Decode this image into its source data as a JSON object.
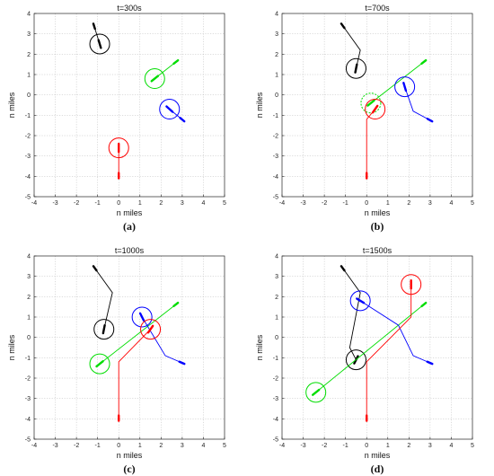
{
  "chart_data": [
    {
      "type": "line",
      "title": "t=300s",
      "caption": "(a)",
      "xlabel": "n miles",
      "ylabel": "n miles",
      "xlim": [
        -4,
        5
      ],
      "ylim": [
        -5,
        4
      ],
      "xticks": [
        -4,
        -3,
        -2,
        -1,
        0,
        1,
        2,
        3,
        4,
        5
      ],
      "yticks": [
        -5,
        -4,
        -3,
        -2,
        -1,
        0,
        1,
        2,
        3,
        4
      ],
      "grid": true,
      "series": [
        {
          "color": "#000000",
          "path": [
            [
              -1.2,
              3.5
            ],
            [
              -0.9,
              2.5
            ]
          ],
          "aircraft": [
            -0.9,
            2.5
          ],
          "heading": [
            0.3,
            -1.0
          ],
          "circle": true
        },
        {
          "color": "#00dd00",
          "path": [
            [
              2.8,
              1.7
            ],
            [
              1.7,
              0.8
            ]
          ],
          "aircraft": [
            1.7,
            0.8
          ],
          "heading": [
            -1.0,
            -0.8
          ],
          "circle": true
        },
        {
          "color": "#0000ff",
          "path": [
            [
              3.1,
              -1.3
            ],
            [
              2.4,
              -0.7
            ]
          ],
          "aircraft": [
            2.4,
            -0.7
          ],
          "heading": [
            -1.0,
            0.9
          ],
          "circle": true
        },
        {
          "color": "#ff0000",
          "path": [
            [
              0.0,
              -4.1
            ],
            [
              0.0,
              -2.6
            ]
          ],
          "aircraft": [
            0.0,
            -2.6
          ],
          "heading": [
            0.0,
            1.0
          ],
          "circle": true
        }
      ]
    },
    {
      "type": "line",
      "title": "t=700s",
      "caption": "(b)",
      "xlabel": "n miles",
      "ylabel": "n miles",
      "xlim": [
        -4,
        5
      ],
      "ylim": [
        -5,
        4
      ],
      "xticks": [
        -4,
        -3,
        -2,
        -1,
        0,
        1,
        2,
        3,
        4,
        5
      ],
      "yticks": [
        -5,
        -4,
        -3,
        -2,
        -1,
        0,
        1,
        2,
        3,
        4
      ],
      "grid": true,
      "series": [
        {
          "color": "#000000",
          "path": [
            [
              -1.2,
              3.5
            ],
            [
              -0.3,
              2.2
            ],
            [
              -0.5,
              1.3
            ]
          ],
          "aircraft": [
            -0.5,
            1.3
          ],
          "heading": [
            0.2,
            1.0
          ],
          "circle": true
        },
        {
          "color": "#00dd00",
          "path": [
            [
              2.8,
              1.7
            ],
            [
              0.2,
              -0.4
            ]
          ],
          "aircraft": [
            0.2,
            -0.4
          ],
          "heading": [
            -1.0,
            -0.8
          ],
          "circle": true,
          "dashed_circle": true
        },
        {
          "color": "#0000ff",
          "path": [
            [
              3.1,
              -1.3
            ],
            [
              2.2,
              -0.8
            ],
            [
              1.8,
              0.4
            ]
          ],
          "aircraft": [
            1.8,
            0.4
          ],
          "heading": [
            -0.3,
            1.0
          ],
          "circle": true
        },
        {
          "color": "#ff0000",
          "path": [
            [
              0.0,
              -4.1
            ],
            [
              0.0,
              -1.2
            ],
            [
              0.4,
              -0.7
            ]
          ],
          "aircraft": [
            0.4,
            -0.7
          ],
          "heading": [
            0.7,
            1.0
          ],
          "circle": true
        }
      ]
    },
    {
      "type": "line",
      "title": "t=1000s",
      "caption": "(c)",
      "xlabel": "n miles",
      "ylabel": "n miles",
      "xlim": [
        -4,
        5
      ],
      "ylim": [
        -5,
        4
      ],
      "xticks": [
        -4,
        -3,
        -2,
        -1,
        0,
        1,
        2,
        3,
        4,
        5
      ],
      "yticks": [
        -5,
        -4,
        -3,
        -2,
        -1,
        0,
        1,
        2,
        3,
        4
      ],
      "grid": true,
      "series": [
        {
          "color": "#000000",
          "path": [
            [
              -1.2,
              3.5
            ],
            [
              -0.3,
              2.2
            ],
            [
              -0.7,
              0.4
            ]
          ],
          "aircraft": [
            -0.7,
            0.4
          ],
          "heading": [
            0.2,
            1.0
          ],
          "circle": true
        },
        {
          "color": "#00dd00",
          "path": [
            [
              2.8,
              1.7
            ],
            [
              -0.9,
              -1.3
            ]
          ],
          "aircraft": [
            -0.9,
            -1.3
          ],
          "heading": [
            -1.0,
            -0.8
          ],
          "circle": true
        },
        {
          "color": "#0000ff",
          "path": [
            [
              3.1,
              -1.3
            ],
            [
              2.2,
              -0.9
            ],
            [
              1.1,
              1.0
            ]
          ],
          "aircraft": [
            1.1,
            1.0
          ],
          "heading": [
            -0.5,
            1.0
          ],
          "circle": true
        },
        {
          "color": "#ff0000",
          "path": [
            [
              0.0,
              -4.1
            ],
            [
              0.0,
              -1.2
            ],
            [
              1.5,
              0.4
            ]
          ],
          "aircraft": [
            1.5,
            0.4
          ],
          "heading": [
            0.7,
            1.0
          ],
          "circle": true
        }
      ]
    },
    {
      "type": "line",
      "title": "t=1500s",
      "caption": "(d)",
      "xlabel": "n miles",
      "ylabel": "n miles",
      "xlim": [
        -4,
        5
      ],
      "ylim": [
        -5,
        4
      ],
      "xticks": [
        -4,
        -3,
        -2,
        -1,
        0,
        1,
        2,
        3,
        4,
        5
      ],
      "yticks": [
        -5,
        -4,
        -3,
        -2,
        -1,
        0,
        1,
        2,
        3,
        4
      ],
      "grid": true,
      "series": [
        {
          "color": "#000000",
          "path": [
            [
              -1.2,
              3.5
            ],
            [
              -0.3,
              2.2
            ],
            [
              -0.8,
              -0.5
            ],
            [
              -0.5,
              -1.1
            ]
          ],
          "aircraft": [
            -0.5,
            -1.1
          ],
          "heading": [
            0.5,
            1.0
          ],
          "circle": true
        },
        {
          "color": "#00dd00",
          "path": [
            [
              2.8,
              1.7
            ],
            [
              -2.4,
              -2.7
            ]
          ],
          "aircraft": [
            -2.4,
            -2.7
          ],
          "heading": [
            -1.0,
            -0.8
          ],
          "circle": true
        },
        {
          "color": "#0000ff",
          "path": [
            [
              3.1,
              -1.3
            ],
            [
              2.2,
              -0.9
            ],
            [
              1.5,
              0.6
            ],
            [
              -0.3,
              1.8
            ]
          ],
          "aircraft": [
            -0.3,
            1.8
          ],
          "heading": [
            -1.0,
            0.6
          ],
          "circle": true
        },
        {
          "color": "#ff0000",
          "path": [
            [
              0.0,
              -4.1
            ],
            [
              0.0,
              -1.2
            ],
            [
              2.1,
              1.0
            ],
            [
              2.1,
              2.6
            ]
          ],
          "aircraft": [
            2.1,
            2.6
          ],
          "heading": [
            0.0,
            1.0
          ],
          "circle": true
        }
      ]
    }
  ]
}
